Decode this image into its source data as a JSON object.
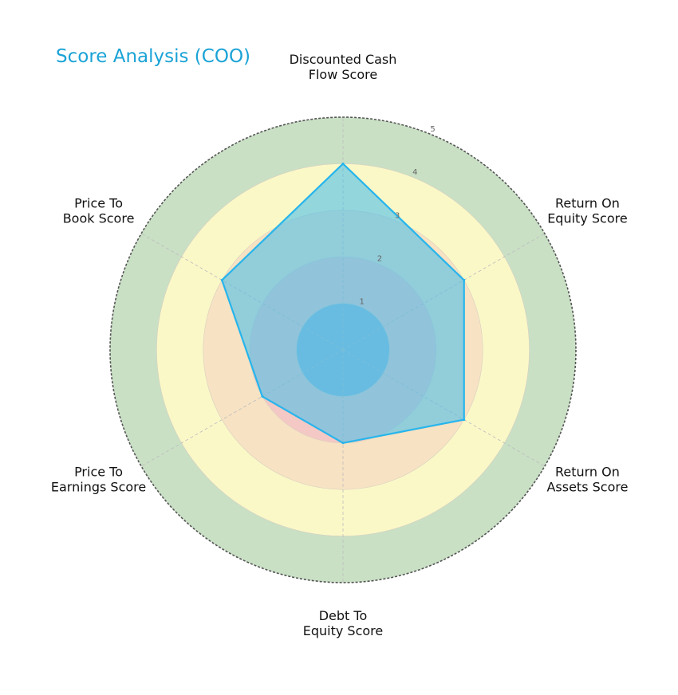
{
  "chart_data": {
    "type": "radar",
    "title": "Score Analysis (COO)",
    "categories": [
      "Discounted Cash Flow Score",
      "Return On Equity Score",
      "Return On Assets Score",
      "Debt To Equity Score",
      "Price To Earnings Score",
      "Price To Book Score"
    ],
    "category_lines": [
      [
        "Discounted Cash",
        "Flow Score"
      ],
      [
        "Return On",
        "Equity Score"
      ],
      [
        "Return On",
        "Assets Score"
      ],
      [
        "Debt To",
        "Equity Score"
      ],
      [
        "Price To",
        "Earnings Score"
      ],
      [
        "Price To",
        "Book Score"
      ]
    ],
    "values": [
      4,
      3,
      3,
      2,
      2,
      3
    ],
    "rlim": [
      0,
      5
    ],
    "rticks": [
      "1",
      "2",
      "3",
      "4",
      "5"
    ],
    "grid": true,
    "colors": {
      "title": "#1aa3d6",
      "series_line": "#27b5ec",
      "series_fill": "#4fc0ea",
      "band_0_1": "#8fb7d6",
      "band_1_2": "#f4c8c4",
      "band_2_3": "#f7e2c3",
      "band_3_4": "#fbf8c8",
      "band_4_5": "#c9e0c5",
      "outer_ring": "#555555"
    }
  }
}
